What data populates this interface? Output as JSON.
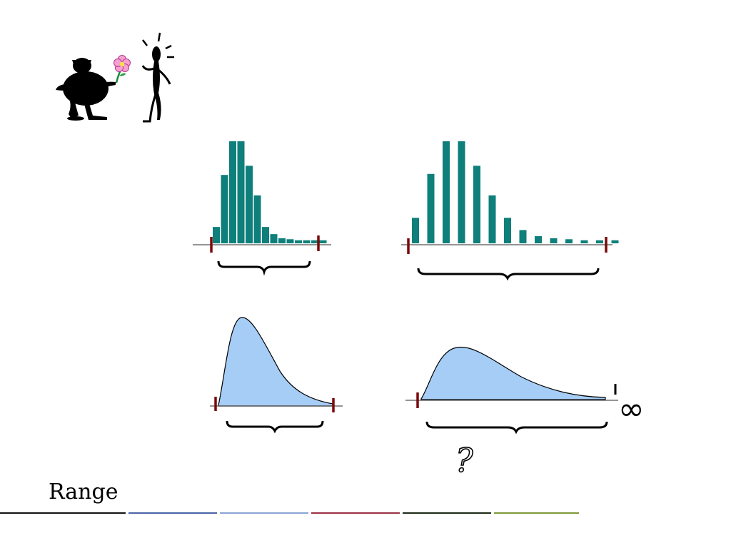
{
  "slide": {
    "title": "Range"
  },
  "annotations": {
    "question_mark": "?",
    "infinity_symbol": "∞"
  },
  "colors": {
    "bar_fill": "#0e7f7a",
    "curve_fill": "#a6cdf6",
    "range_marker": "#7a0a0a",
    "baseline": "#555555",
    "rule_segments": [
      "#111111",
      "#4a64a8",
      "#8aa3d6",
      "#9a3045",
      "#1c2a16",
      "#7d9a3a"
    ]
  },
  "illustration": {
    "icons": [
      "person-offering-flower-icon",
      "flower-icon",
      "surprised-person-icon"
    ]
  },
  "charts": [
    {
      "type": "bar",
      "name": "narrow-discrete-distribution",
      "values": [
        0.16,
        0.67,
        1.0,
        1.0,
        0.76,
        0.47,
        0.16,
        0.09,
        0.05,
        0.04,
        0.03,
        0.03,
        0.03,
        0.03
      ]
    },
    {
      "type": "bar",
      "name": "wide-discrete-distribution",
      "values": [
        0.25,
        0.68,
        1.0,
        1.0,
        0.76,
        0.47,
        0.25,
        0.13,
        0.07,
        0.05,
        0.04,
        0.03,
        0.03,
        0.03
      ]
    },
    {
      "type": "area",
      "name": "narrow-continuous-distribution",
      "range_bounded": true
    },
    {
      "type": "area",
      "name": "wide-continuous-distribution",
      "range_bounded": false
    }
  ]
}
